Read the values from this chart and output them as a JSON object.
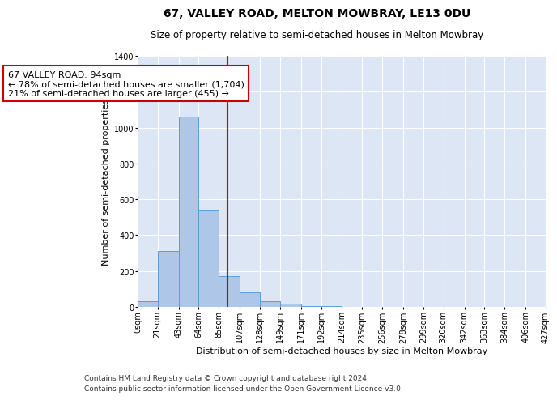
{
  "title": "67, VALLEY ROAD, MELTON MOWBRAY, LE13 0DU",
  "subtitle": "Size of property relative to semi-detached houses in Melton Mowbray",
  "xlabel": "Distribution of semi-detached houses by size in Melton Mowbray",
  "ylabel": "Number of semi-detached properties",
  "footnote1": "Contains HM Land Registry data © Crown copyright and database right 2024.",
  "footnote2": "Contains public sector information licensed under the Open Government Licence v3.0.",
  "annotation_line1": "67 VALLEY ROAD: 94sqm",
  "annotation_line2": "← 78% of semi-detached houses are smaller (1,704)",
  "annotation_line3": "21% of semi-detached houses are larger (455) →",
  "property_size": 94,
  "bin_edges": [
    0,
    21,
    43,
    64,
    85,
    107,
    128,
    149,
    171,
    192,
    214,
    235,
    256,
    278,
    299,
    320,
    342,
    363,
    384,
    406,
    427
  ],
  "bin_counts": [
    30,
    310,
    1060,
    540,
    170,
    80,
    30,
    20,
    5,
    3,
    2,
    2,
    1,
    1,
    1,
    0,
    0,
    1,
    0,
    0
  ],
  "bar_color": "#aec6e8",
  "bar_edge_color": "#5a9fd4",
  "vline_color": "#cc0000",
  "vline_x": 94,
  "annotation_box_color": "#ffffff",
  "annotation_box_edge_color": "#cc0000",
  "background_color": "#dce6f5",
  "grid_color": "#ffffff",
  "ylim": [
    0,
    1400
  ],
  "yticks": [
    0,
    200,
    400,
    600,
    800,
    1000,
    1200,
    1400
  ],
  "title_fontsize": 10,
  "subtitle_fontsize": 8.5,
  "ylabel_fontsize": 8,
  "xlabel_fontsize": 8,
  "tick_label_fontsize": 7,
  "annotation_fontsize": 8,
  "footnote_fontsize": 6.5
}
